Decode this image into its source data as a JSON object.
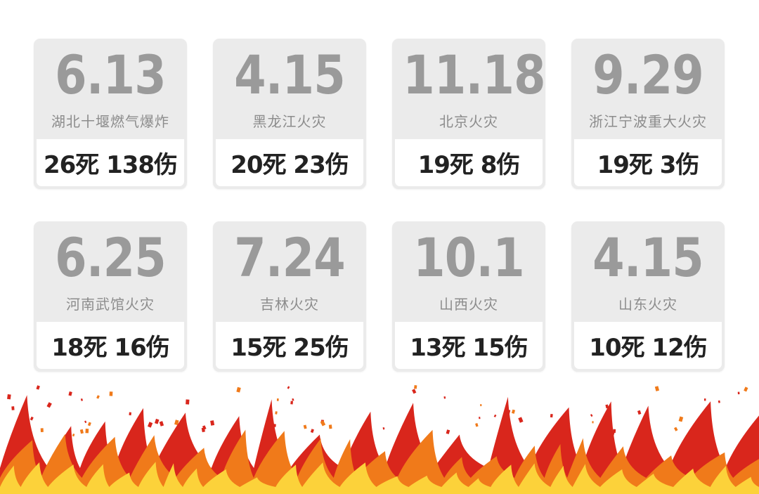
{
  "cards": [
    {
      "date": "6.13",
      "event": "湖北十堰燃气爆炸",
      "casualties": "26死 138伤"
    },
    {
      "date": "4.15",
      "event": "黑龙江火灾",
      "casualties": "20死 23伤"
    },
    {
      "date": "11.18",
      "event": "北京火灾",
      "casualties": "19死 8伤"
    },
    {
      "date": "9.29",
      "event": "浙江宁波重大火灾",
      "casualties": "19死 3伤"
    },
    {
      "date": "6.25",
      "event": "河南武馆火灾",
      "casualties": "18死 16伤"
    },
    {
      "date": "7.24",
      "event": "吉林火灾",
      "casualties": "15死 25伤"
    },
    {
      "date": "10.1",
      "event": "山西火灾",
      "casualties": "13死 15伤"
    },
    {
      "date": "4.15",
      "event": "山东火灾",
      "casualties": "10死 12伤"
    }
  ],
  "colors": {
    "card_background": "#ebebeb",
    "date_text": "#9a9a9a",
    "event_text": "#8c8c8c",
    "casualty_text": "#222222",
    "flame_outer": "#d9261c",
    "flame_middle": "#f07a1a",
    "flame_inner": "#fcd23a"
  },
  "decoration": {
    "flames": "fire-flames-illustration"
  }
}
